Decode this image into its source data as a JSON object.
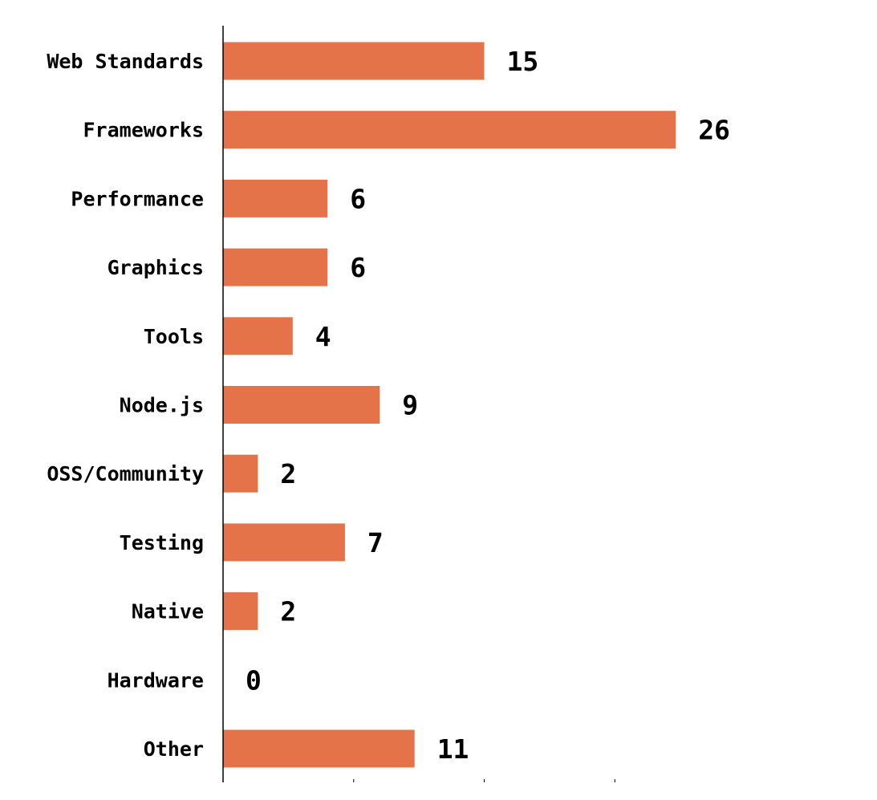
{
  "chart_data": {
    "type": "bar",
    "orientation": "horizontal",
    "categories": [
      "Web Standards",
      "Frameworks",
      "Performance",
      "Graphics",
      "Tools",
      "Node.js",
      "OSS/Community",
      "Testing",
      "Native",
      "Hardware",
      "Other"
    ],
    "values": [
      15,
      26,
      6,
      6,
      4,
      9,
      2,
      7,
      2,
      0,
      11
    ],
    "title": "",
    "xlabel": "",
    "ylabel": "",
    "xlim": [
      0,
      37.5
    ],
    "x_tick_marks": [
      0,
      7.5,
      15,
      22.5
    ],
    "data_labels": true,
    "grid": false,
    "legend": "none",
    "bar_color": "#e5734a"
  }
}
